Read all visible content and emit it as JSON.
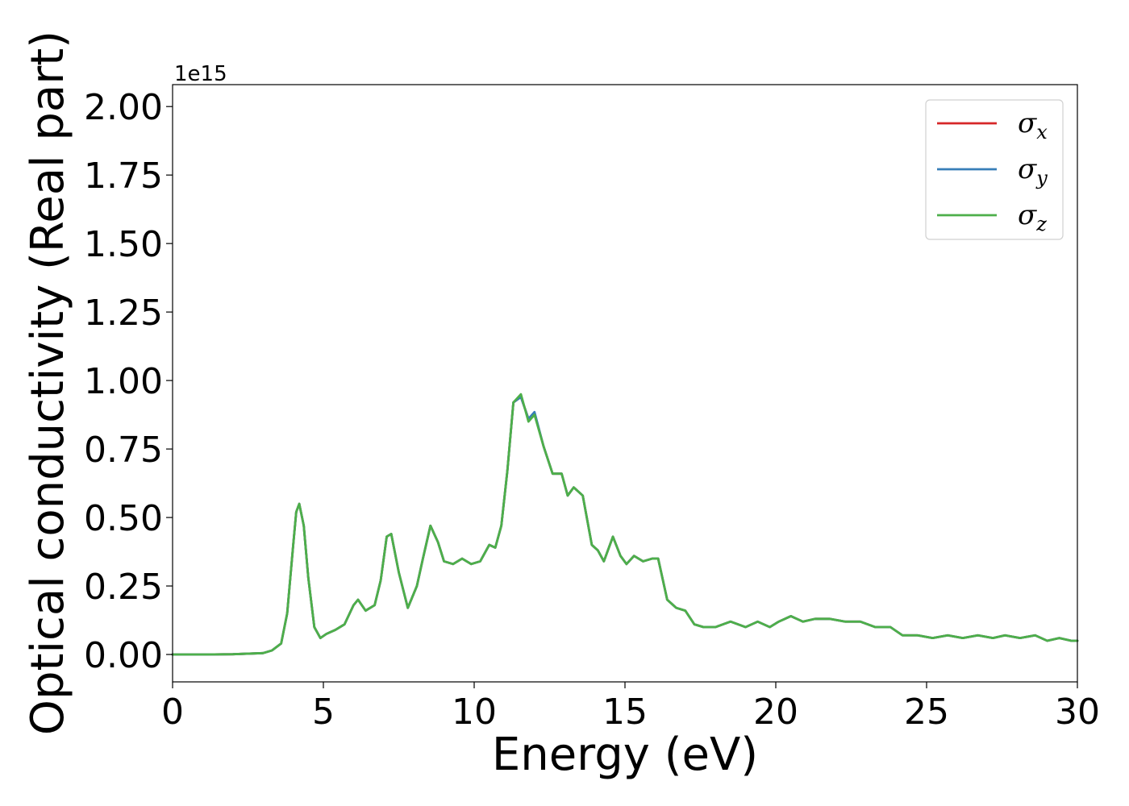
{
  "chart_data": {
    "type": "line",
    "title": "",
    "xlabel": "Energy (eV)",
    "ylabel": "Optical conductivity (Real part)",
    "y_offset_label": "1e15",
    "xlim": [
      0,
      30
    ],
    "ylim": [
      -0.1,
      2.08
    ],
    "x_ticks": [
      0,
      5,
      10,
      15,
      20,
      25,
      30
    ],
    "x_tick_labels": [
      "0",
      "5",
      "10",
      "15",
      "20",
      "25",
      "30"
    ],
    "y_ticks": [
      0,
      0.25,
      0.5,
      0.75,
      1.0,
      1.25,
      1.5,
      1.75,
      2.0
    ],
    "y_tick_labels": [
      "0.00",
      "0.25",
      "0.50",
      "0.75",
      "1.00",
      "1.25",
      "1.50",
      "1.75",
      "2.00"
    ],
    "grid": false,
    "legend_position": "top-right",
    "series": [
      {
        "name": "σx",
        "legend_symbol": "σ",
        "legend_subscript": "x",
        "color": "#d62728",
        "x": [
          0,
          1,
          2,
          3,
          3.3,
          3.6,
          3.8,
          4.0,
          4.1,
          4.2,
          4.35,
          4.5,
          4.7,
          4.9,
          5.1,
          5.4,
          5.7,
          6.0,
          6.15,
          6.4,
          6.7,
          6.9,
          7.1,
          7.25,
          7.5,
          7.8,
          8.1,
          8.3,
          8.55,
          8.8,
          9.0,
          9.3,
          9.6,
          9.9,
          10.2,
          10.5,
          10.7,
          10.9,
          11.1,
          11.3,
          11.55,
          11.8,
          12.0,
          12.3,
          12.6,
          12.9,
          13.1,
          13.3,
          13.6,
          13.9,
          14.1,
          14.3,
          14.6,
          14.85,
          15.05,
          15.3,
          15.6,
          15.9,
          16.1,
          16.4,
          16.7,
          17.0,
          17.3,
          17.6,
          18.0,
          18.5,
          19.0,
          19.4,
          19.8,
          20.1,
          20.5,
          20.9,
          21.3,
          21.8,
          22.3,
          22.8,
          23.3,
          23.8,
          24.2,
          24.7,
          25.2,
          25.7,
          26.2,
          26.7,
          27.2,
          27.6,
          28.1,
          28.6,
          29.0,
          29.4,
          29.8,
          30
        ],
        "y": [
          0,
          0,
          0.001,
          0.005,
          0.015,
          0.04,
          0.15,
          0.4,
          0.52,
          0.55,
          0.47,
          0.28,
          0.1,
          0.06,
          0.075,
          0.09,
          0.11,
          0.18,
          0.2,
          0.16,
          0.18,
          0.27,
          0.43,
          0.44,
          0.3,
          0.17,
          0.25,
          0.35,
          0.47,
          0.41,
          0.34,
          0.33,
          0.35,
          0.33,
          0.34,
          0.4,
          0.39,
          0.47,
          0.67,
          0.92,
          0.94,
          0.86,
          0.88,
          0.76,
          0.66,
          0.66,
          0.58,
          0.61,
          0.58,
          0.4,
          0.38,
          0.34,
          0.43,
          0.36,
          0.33,
          0.36,
          0.34,
          0.35,
          0.35,
          0.2,
          0.17,
          0.16,
          0.11,
          0.1,
          0.1,
          0.12,
          0.1,
          0.12,
          0.1,
          0.12,
          0.14,
          0.12,
          0.13,
          0.13,
          0.12,
          0.12,
          0.1,
          0.1,
          0.07,
          0.07,
          0.06,
          0.07,
          0.06,
          0.07,
          0.06,
          0.07,
          0.06,
          0.07,
          0.05,
          0.06,
          0.05,
          0.05
        ]
      },
      {
        "name": "σy",
        "legend_symbol": "σ",
        "legend_subscript": "y",
        "color": "#377eb8",
        "x": [
          0,
          1,
          2,
          3,
          3.3,
          3.6,
          3.8,
          4.0,
          4.1,
          4.2,
          4.35,
          4.5,
          4.7,
          4.9,
          5.1,
          5.4,
          5.7,
          6.0,
          6.15,
          6.4,
          6.7,
          6.9,
          7.1,
          7.25,
          7.5,
          7.8,
          8.1,
          8.3,
          8.55,
          8.8,
          9.0,
          9.3,
          9.6,
          9.9,
          10.2,
          10.5,
          10.7,
          10.9,
          11.1,
          11.3,
          11.55,
          11.8,
          12.0,
          12.3,
          12.6,
          12.9,
          13.1,
          13.3,
          13.6,
          13.9,
          14.1,
          14.3,
          14.6,
          14.85,
          15.05,
          15.3,
          15.6,
          15.9,
          16.1,
          16.4,
          16.7,
          17.0,
          17.3,
          17.6,
          18.0,
          18.5,
          19.0,
          19.4,
          19.8,
          20.1,
          20.5,
          20.9,
          21.3,
          21.8,
          22.3,
          22.8,
          23.3,
          23.8,
          24.2,
          24.7,
          25.2,
          25.7,
          26.2,
          26.7,
          27.2,
          27.6,
          28.1,
          28.6,
          29.0,
          29.4,
          29.8,
          30
        ],
        "y": [
          0,
          0,
          0.001,
          0.005,
          0.015,
          0.04,
          0.15,
          0.4,
          0.52,
          0.55,
          0.47,
          0.28,
          0.1,
          0.06,
          0.075,
          0.09,
          0.11,
          0.18,
          0.2,
          0.16,
          0.18,
          0.27,
          0.43,
          0.44,
          0.3,
          0.17,
          0.25,
          0.35,
          0.47,
          0.41,
          0.34,
          0.33,
          0.35,
          0.33,
          0.34,
          0.4,
          0.39,
          0.47,
          0.67,
          0.92,
          0.94,
          0.86,
          0.885,
          0.76,
          0.66,
          0.66,
          0.58,
          0.61,
          0.58,
          0.4,
          0.38,
          0.34,
          0.43,
          0.36,
          0.33,
          0.36,
          0.34,
          0.35,
          0.35,
          0.2,
          0.17,
          0.16,
          0.11,
          0.1,
          0.1,
          0.12,
          0.1,
          0.12,
          0.1,
          0.12,
          0.14,
          0.12,
          0.13,
          0.13,
          0.12,
          0.12,
          0.1,
          0.1,
          0.07,
          0.07,
          0.06,
          0.07,
          0.06,
          0.07,
          0.06,
          0.07,
          0.06,
          0.07,
          0.05,
          0.06,
          0.05,
          0.05
        ]
      },
      {
        "name": "σz",
        "legend_symbol": "σ",
        "legend_subscript": "z",
        "color": "#4daf4a",
        "x": [
          0,
          1,
          2,
          3,
          3.3,
          3.6,
          3.8,
          4.0,
          4.1,
          4.2,
          4.35,
          4.5,
          4.7,
          4.9,
          5.1,
          5.4,
          5.7,
          6.0,
          6.15,
          6.4,
          6.7,
          6.9,
          7.1,
          7.25,
          7.5,
          7.8,
          8.1,
          8.3,
          8.55,
          8.8,
          9.0,
          9.3,
          9.6,
          9.9,
          10.2,
          10.5,
          10.7,
          10.9,
          11.1,
          11.3,
          11.55,
          11.8,
          12.0,
          12.3,
          12.6,
          12.9,
          13.1,
          13.3,
          13.6,
          13.9,
          14.1,
          14.3,
          14.6,
          14.85,
          15.05,
          15.3,
          15.6,
          15.9,
          16.1,
          16.4,
          16.7,
          17.0,
          17.3,
          17.6,
          18.0,
          18.5,
          19.0,
          19.4,
          19.8,
          20.1,
          20.5,
          20.9,
          21.3,
          21.8,
          22.3,
          22.8,
          23.3,
          23.8,
          24.2,
          24.7,
          25.2,
          25.7,
          26.2,
          26.7,
          27.2,
          27.6,
          28.1,
          28.6,
          29.0,
          29.4,
          29.8,
          30
        ],
        "y": [
          0,
          0,
          0.001,
          0.005,
          0.015,
          0.04,
          0.15,
          0.4,
          0.52,
          0.55,
          0.47,
          0.28,
          0.1,
          0.06,
          0.075,
          0.09,
          0.11,
          0.18,
          0.2,
          0.16,
          0.18,
          0.27,
          0.43,
          0.44,
          0.3,
          0.17,
          0.25,
          0.35,
          0.47,
          0.41,
          0.34,
          0.33,
          0.35,
          0.33,
          0.34,
          0.4,
          0.39,
          0.47,
          0.67,
          0.92,
          0.95,
          0.85,
          0.875,
          0.76,
          0.66,
          0.66,
          0.58,
          0.61,
          0.58,
          0.4,
          0.38,
          0.34,
          0.43,
          0.36,
          0.33,
          0.36,
          0.34,
          0.35,
          0.35,
          0.2,
          0.17,
          0.16,
          0.11,
          0.1,
          0.1,
          0.12,
          0.1,
          0.12,
          0.1,
          0.12,
          0.14,
          0.12,
          0.13,
          0.13,
          0.12,
          0.12,
          0.1,
          0.1,
          0.07,
          0.07,
          0.06,
          0.07,
          0.06,
          0.07,
          0.06,
          0.07,
          0.06,
          0.07,
          0.05,
          0.06,
          0.05,
          0.05
        ]
      }
    ]
  }
}
